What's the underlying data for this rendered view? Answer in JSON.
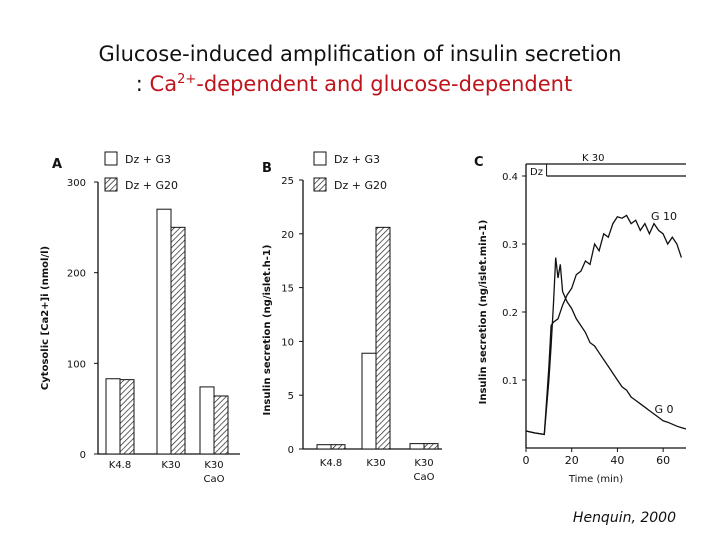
{
  "slide": {
    "title_line1": "Glucose-induced amplification of insulin secretion",
    "title_line2_prefix": ": ",
    "title_ca": "Ca",
    "title_sup": "2+",
    "title_line2_rest": "-dependent and glucose-dependent",
    "citation": "Henquin, 2000"
  },
  "colors": {
    "title_accent": "#c0141c",
    "ink": "#111111"
  },
  "chart_data": [
    {
      "panel": "A",
      "type": "bar",
      "ylabel": "Cytosolic [Ca2+]i (nmol/l)",
      "ylim": [
        0,
        300
      ],
      "yticks": [
        0,
        100,
        200,
        300
      ],
      "categories": [
        "K4.8",
        "K30",
        "K30\nCaO"
      ],
      "series": [
        {
          "name": "Dz + G3",
          "pattern": "open",
          "values": [
            83,
            270,
            74
          ]
        },
        {
          "name": "Dz + G20",
          "pattern": "hatched",
          "values": [
            82,
            250,
            64
          ]
        }
      ],
      "legend": "top"
    },
    {
      "panel": "B",
      "type": "bar",
      "ylabel": "Insulin secretion (ng/islet.h-1)",
      "ylim": [
        0,
        25
      ],
      "yticks": [
        0,
        5,
        10,
        15,
        20,
        25
      ],
      "categories": [
        "K4.8",
        "K30",
        "K30\nCaO"
      ],
      "series": [
        {
          "name": "Dz + G3",
          "pattern": "open",
          "values": [
            0.4,
            8.9,
            0.5
          ]
        },
        {
          "name": "Dz + G20",
          "pattern": "hatched",
          "values": [
            0.4,
            20.6,
            0.5
          ]
        }
      ],
      "legend": "top"
    },
    {
      "panel": "C",
      "type": "line",
      "xlabel": "Time (min)",
      "ylabel": "Insulin secretion (ng/islet.min-1)",
      "xlim": [
        0,
        70
      ],
      "ylim": [
        0,
        0.4
      ],
      "xticks": [
        0,
        20,
        40,
        60
      ],
      "yticks": [
        0.1,
        0.2,
        0.3,
        0.4
      ],
      "annotations": {
        "dz": "Dz",
        "k30": "K 30"
      },
      "series": [
        {
          "name": "G 10",
          "x": [
            0,
            4,
            8,
            10,
            11,
            12,
            14,
            16,
            18,
            20,
            22,
            24,
            26,
            28,
            30,
            32,
            34,
            36,
            38,
            40,
            42,
            44,
            46,
            48,
            50,
            52,
            54,
            56,
            58,
            60,
            62,
            64,
            66,
            68
          ],
          "y": [
            0.025,
            0.022,
            0.02,
            0.12,
            0.18,
            0.185,
            0.19,
            0.21,
            0.225,
            0.235,
            0.255,
            0.26,
            0.275,
            0.27,
            0.3,
            0.29,
            0.315,
            0.31,
            0.33,
            0.34,
            0.338,
            0.342,
            0.33,
            0.335,
            0.32,
            0.33,
            0.315,
            0.33,
            0.32,
            0.315,
            0.3,
            0.31,
            0.3,
            0.28
          ]
        },
        {
          "name": "G 0",
          "x": [
            0,
            4,
            8,
            10,
            11,
            12,
            13,
            14,
            15,
            16,
            18,
            20,
            22,
            24,
            26,
            28,
            30,
            32,
            34,
            36,
            38,
            40,
            42,
            44,
            46,
            48,
            50,
            52,
            54,
            56,
            58,
            60,
            62,
            64,
            66,
            68,
            70
          ],
          "y": [
            0.025,
            0.022,
            0.02,
            0.1,
            0.15,
            0.21,
            0.28,
            0.25,
            0.27,
            0.23,
            0.215,
            0.205,
            0.19,
            0.18,
            0.17,
            0.155,
            0.15,
            0.14,
            0.13,
            0.12,
            0.11,
            0.1,
            0.09,
            0.085,
            0.075,
            0.07,
            0.065,
            0.06,
            0.055,
            0.05,
            0.045,
            0.04,
            0.038,
            0.035,
            0.032,
            0.03,
            0.028
          ]
        }
      ]
    }
  ]
}
